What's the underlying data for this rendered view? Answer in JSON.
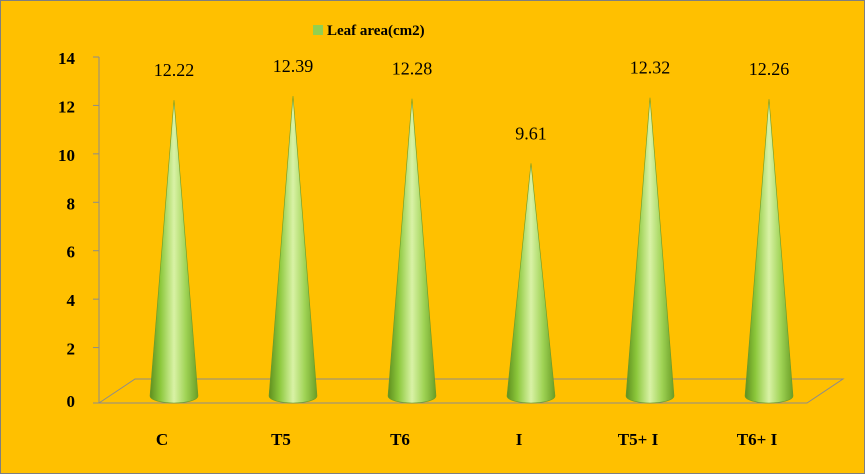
{
  "chart_data": {
    "type": "bar",
    "bar_shape": "cone",
    "categories": [
      "C",
      "T5",
      "T6",
      "I",
      "T5+ I",
      "T6+ I"
    ],
    "series": [
      {
        "name": "Leaf area(cm2)",
        "values": [
          12.22,
          12.39,
          12.28,
          9.61,
          12.32,
          12.26
        ],
        "data_labels": [
          "12.22",
          "12.39",
          "12.28",
          "9.61",
          "12.32",
          "12.26"
        ],
        "color": "#92d050"
      }
    ],
    "ylim": [
      0,
      14
    ],
    "yticks": [
      "0",
      "2",
      "4",
      "6",
      "8",
      "10",
      "12",
      "14"
    ],
    "legend": {
      "position": "top-center",
      "label": "Leaf area(cm2)"
    },
    "grid": false,
    "colors": {
      "background": "#ffc000",
      "bar": "#92d050",
      "floor": "#ffc000"
    }
  }
}
